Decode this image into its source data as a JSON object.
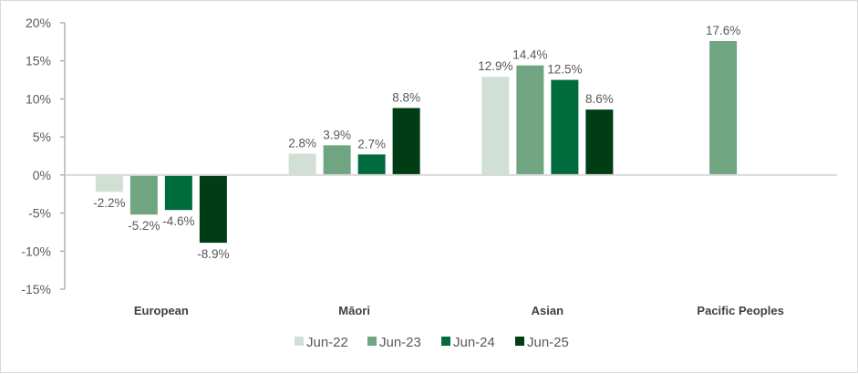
{
  "chart_data": {
    "type": "bar",
    "title": "",
    "xlabel": "",
    "ylabel": "",
    "ylim": [
      -15,
      20
    ],
    "yticks": [
      "20%",
      "15%",
      "10%",
      "5%",
      "0%",
      "-5%",
      "-10%",
      "-15%"
    ],
    "grid": false,
    "legend_position": "bottom",
    "categories": [
      "European",
      "Māori",
      "Asian",
      "Pacific Peoples"
    ],
    "series": [
      {
        "name": "Jun-22",
        "color": "#d0e0d5",
        "values": [
          -2.2,
          2.8,
          12.9,
          null
        ],
        "labels": [
          "-2.2%",
          "2.8%",
          "12.9%",
          ""
        ]
      },
      {
        "name": "Jun-23",
        "color": "#70a582",
        "values": [
          -5.2,
          3.9,
          14.4,
          17.6
        ],
        "labels": [
          "-5.2%",
          "3.9%",
          "14.4%",
          "17.6%"
        ]
      },
      {
        "name": "Jun-24",
        "color": "#006b3c",
        "values": [
          -4.6,
          2.7,
          12.5,
          null
        ],
        "labels": [
          "-4.6%",
          "2.7%",
          "12.5%",
          ""
        ]
      },
      {
        "name": "Jun-25",
        "color": "#003d14",
        "values": [
          -8.9,
          8.8,
          8.6,
          null
        ],
        "labels": [
          "-8.9%",
          "8.8%",
          "8.6%",
          ""
        ]
      }
    ]
  }
}
